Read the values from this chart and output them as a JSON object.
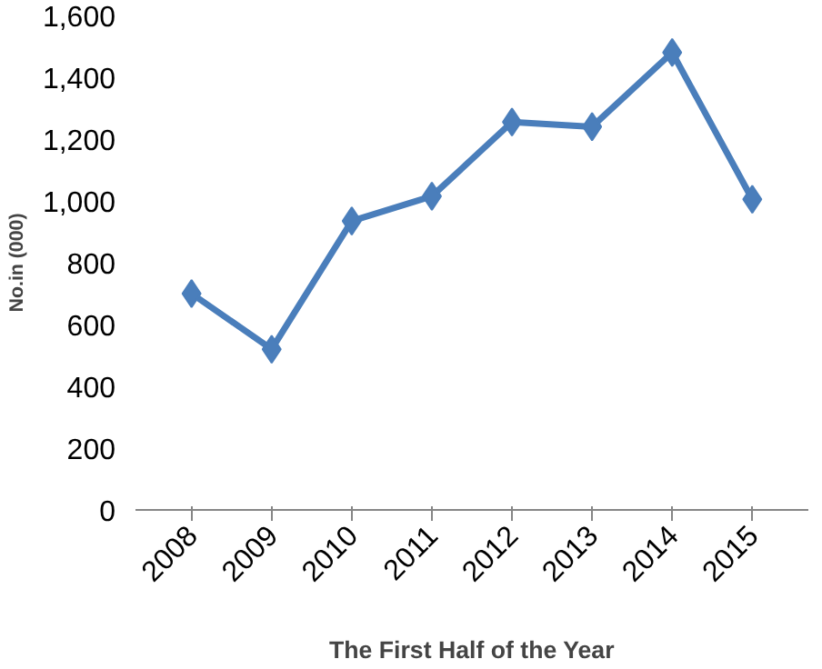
{
  "chart_data": {
    "type": "line",
    "xlabel": "The First Half of the Year",
    "ylabel": "No.in (000)",
    "categories": [
      "2008",
      "2009",
      "2010",
      "2011",
      "2012",
      "2013",
      "2014",
      "2015"
    ],
    "series": [
      {
        "color": "#4a7ebb",
        "values": [
          700,
          520,
          935,
          1015,
          1255,
          1240,
          1480,
          1005
        ]
      }
    ],
    "ylim": [
      0,
      1600
    ],
    "yticks": [
      0,
      200,
      400,
      600,
      800,
      {
        "value": 1000,
        "label": "1,000"
      },
      {
        "value": 1200,
        "label": "1,200"
      },
      {
        "value": 1400,
        "label": "1,400"
      },
      {
        "value": 1600,
        "label": "1,600"
      }
    ],
    "marker": "diamond",
    "line_style": "solid",
    "grid": false
  }
}
